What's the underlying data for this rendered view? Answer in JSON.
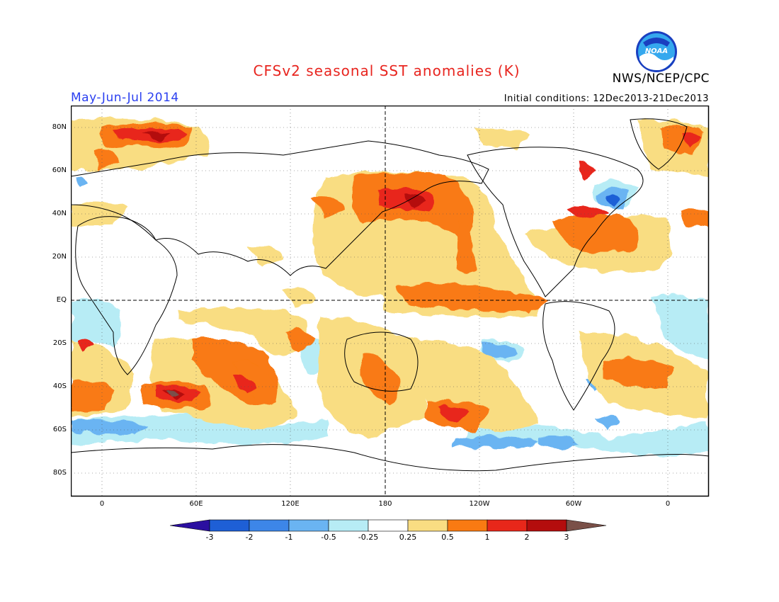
{
  "header": {
    "title": "CFSv2 seasonal SST anomalies (K)",
    "agency": "NWS/NCEP/CPC",
    "logo_text": "NOAA",
    "season": "May-Jun-Jul 2014",
    "initial_conditions": "Initial conditions: 12Dec2013-21Dec2013"
  },
  "map": {
    "lat_labels": [
      "80N",
      "60N",
      "40N",
      "20N",
      "EQ",
      "20S",
      "40S",
      "60S",
      "80S"
    ],
    "lon_labels": [
      "0",
      "60E",
      "120E",
      "180",
      "120W",
      "60W",
      "0"
    ]
  },
  "colorbar": {
    "levels": [
      "-3",
      "-2",
      "-1",
      "-0.5",
      "-0.25",
      "0.25",
      "0.5",
      "1",
      "2",
      "3"
    ],
    "colors": [
      "#2b0fa0",
      "#1e5fd6",
      "#3d86e8",
      "#6ab4f2",
      "#b7ecf5",
      "#ffffff",
      "#f9dd82",
      "#f97a12",
      "#e8271a",
      "#b40d0d",
      "#7a5048"
    ],
    "color_names": [
      "below -3",
      "-3 to -2",
      "-2 to -1",
      "-1 to -0.5",
      "-0.5 to -0.25",
      "-0.25 to 0.25",
      "0.25 to 0.5",
      "0.5 to 1",
      "1 to 2",
      "2 to 3",
      "above 3"
    ]
  }
}
